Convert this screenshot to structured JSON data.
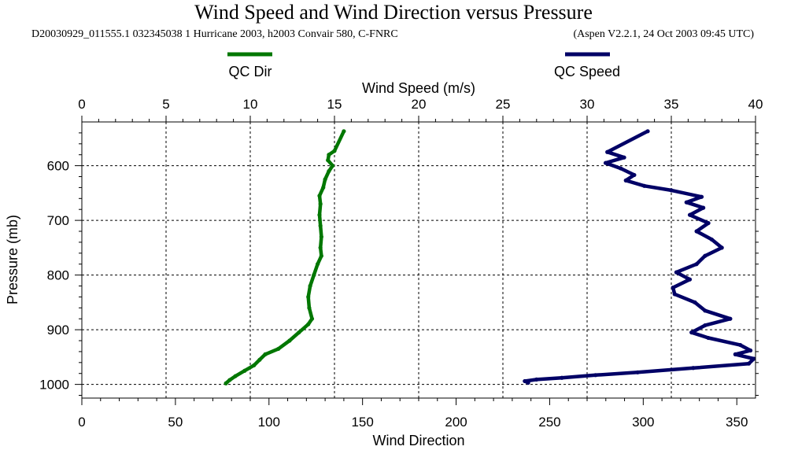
{
  "chart_data": {
    "type": "line",
    "title": "Wind Speed and Wind Direction versus Pressure",
    "subtitle_left": "D20030929_011555.1 032345038 1 Hurricane 2003, h2003 Convair 580, C-FNRC",
    "subtitle_right": "(Aspen V2.2.1, 24 Oct 2003  09:45 UTC)",
    "top_axis": {
      "label": "Wind Speed (m/s)",
      "range": [
        0,
        40
      ],
      "ticks": [
        "0",
        "5",
        "10",
        "15",
        "20",
        "25",
        "30",
        "35",
        "40"
      ]
    },
    "bottom_axis": {
      "label": "Wind Direction",
      "range": [
        0,
        360
      ],
      "ticks": [
        "0",
        "50",
        "100",
        "150",
        "200",
        "250",
        "300",
        "350"
      ]
    },
    "y_axis": {
      "label": "Pressure (mb)",
      "range": [
        520,
        1025
      ],
      "inverted": true,
      "ticks": [
        "600",
        "700",
        "800",
        "900",
        "1000"
      ]
    },
    "grid": true,
    "legend": {
      "placement": "top",
      "items": [
        {
          "name": "QC Dir",
          "color": "#007700"
        },
        {
          "name": "QC Speed",
          "color": "#000066"
        }
      ]
    },
    "series": [
      {
        "name": "QC Dir",
        "axis": "bottom",
        "color": "#007700",
        "points": [
          {
            "p": 537,
            "v": 140
          },
          {
            "p": 573,
            "v": 135
          },
          {
            "p": 580,
            "v": 132
          },
          {
            "p": 590,
            "v": 131.5
          },
          {
            "p": 600,
            "v": 134
          },
          {
            "p": 610,
            "v": 132
          },
          {
            "p": 625,
            "v": 130
          },
          {
            "p": 640,
            "v": 129
          },
          {
            "p": 655,
            "v": 127
          },
          {
            "p": 670,
            "v": 127.5
          },
          {
            "p": 690,
            "v": 127
          },
          {
            "p": 710,
            "v": 127.5
          },
          {
            "p": 730,
            "v": 128
          },
          {
            "p": 750,
            "v": 127.5
          },
          {
            "p": 765,
            "v": 128
          },
          {
            "p": 780,
            "v": 126
          },
          {
            "p": 800,
            "v": 124
          },
          {
            "p": 820,
            "v": 122
          },
          {
            "p": 840,
            "v": 121
          },
          {
            "p": 860,
            "v": 121.5
          },
          {
            "p": 880,
            "v": 123
          },
          {
            "p": 890,
            "v": 121
          },
          {
            "p": 905,
            "v": 116
          },
          {
            "p": 920,
            "v": 111
          },
          {
            "p": 935,
            "v": 105
          },
          {
            "p": 945,
            "v": 98
          },
          {
            "p": 955,
            "v": 95
          },
          {
            "p": 965,
            "v": 92
          },
          {
            "p": 975,
            "v": 87
          },
          {
            "p": 985,
            "v": 82
          },
          {
            "p": 992,
            "v": 79
          },
          {
            "p": 998,
            "v": 77
          }
        ]
      },
      {
        "name": "QC Speed",
        "axis": "top",
        "color": "#000066",
        "points": [
          {
            "p": 537,
            "v": 33.6
          },
          {
            "p": 575,
            "v": 31.2
          },
          {
            "p": 585,
            "v": 32.2
          },
          {
            "p": 595,
            "v": 31.1
          },
          {
            "p": 605,
            "v": 32.0
          },
          {
            "p": 617,
            "v": 32.8
          },
          {
            "p": 627,
            "v": 32.3
          },
          {
            "p": 637,
            "v": 33.4
          },
          {
            "p": 645,
            "v": 35.0
          },
          {
            "p": 657,
            "v": 36.8
          },
          {
            "p": 667,
            "v": 35.9
          },
          {
            "p": 677,
            "v": 36.9
          },
          {
            "p": 690,
            "v": 36.1
          },
          {
            "p": 705,
            "v": 37.2
          },
          {
            "p": 720,
            "v": 36.5
          },
          {
            "p": 735,
            "v": 37.4
          },
          {
            "p": 750,
            "v": 38.0
          },
          {
            "p": 765,
            "v": 37.0
          },
          {
            "p": 780,
            "v": 36.5
          },
          {
            "p": 795,
            "v": 35.3
          },
          {
            "p": 808,
            "v": 36.1
          },
          {
            "p": 823,
            "v": 35.1
          },
          {
            "p": 835,
            "v": 35.2
          },
          {
            "p": 850,
            "v": 36.4
          },
          {
            "p": 865,
            "v": 37.0
          },
          {
            "p": 880,
            "v": 38.5
          },
          {
            "p": 892,
            "v": 37.0
          },
          {
            "p": 905,
            "v": 36.2
          },
          {
            "p": 915,
            "v": 37.2
          },
          {
            "p": 928,
            "v": 39.1
          },
          {
            "p": 938,
            "v": 39.7
          },
          {
            "p": 945,
            "v": 38.8
          },
          {
            "p": 953,
            "v": 39.9
          },
          {
            "p": 962,
            "v": 39.6
          },
          {
            "p": 970,
            "v": 36.3
          },
          {
            "p": 978,
            "v": 33.0
          },
          {
            "p": 983,
            "v": 30.5
          },
          {
            "p": 988,
            "v": 28.5
          },
          {
            "p": 991,
            "v": 27.0
          },
          {
            "p": 994,
            "v": 26.3
          },
          {
            "p": 997,
            "v": 26.5
          }
        ]
      }
    ]
  }
}
